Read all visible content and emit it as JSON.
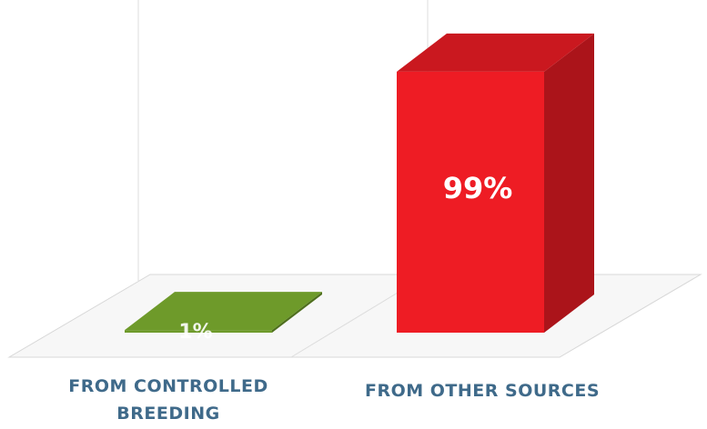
{
  "chart_data": {
    "type": "bar",
    "categories": [
      "FROM CONTROLLED BREEDING",
      "FROM OTHER SOURCES"
    ],
    "category_lines": [
      [
        "FROM CONTROLLED",
        "BREEDING"
      ],
      [
        "FROM OTHER SOURCES"
      ]
    ],
    "values": [
      1,
      99
    ],
    "value_labels": [
      "1%",
      "99%"
    ],
    "ylim": [
      0,
      100
    ],
    "bar_colors": [
      "#6e9a2a",
      "#ee1c24"
    ],
    "label_color": "#3f6a8a",
    "style": "3d",
    "grid": false,
    "legend": "none"
  }
}
